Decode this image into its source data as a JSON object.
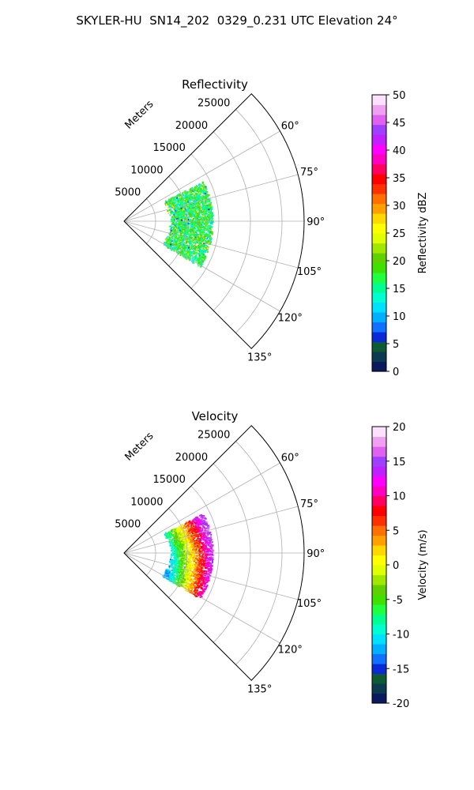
{
  "figure": {
    "title": "SKYLER-HU  SN14_202  0329_0.231 UTC Elevation 24°"
  },
  "chart_data": [
    {
      "type": "heatmap",
      "subtype": "polar-sector-ppi",
      "title": "Reflectivity",
      "range_axis_label": "Meters",
      "range_ticks": [
        5000,
        10000,
        15000,
        20000,
        25000
      ],
      "range_tick_labels": [
        "5000",
        "10000",
        "15000",
        "20000",
        "25000"
      ],
      "range_max": 28500,
      "azimuth_ticks": [
        60,
        75,
        90,
        105,
        120,
        135
      ],
      "azimuth_tick_labels": [
        "60°",
        "75°",
        "90°",
        "105°",
        "120°",
        "135°"
      ],
      "azimuth_range": [
        45,
        135
      ],
      "grid": true,
      "data_extent": {
        "range_start": 7000,
        "range_end": 14000,
        "azimuth_start": 63,
        "azimuth_end": 121
      },
      "typical_value_range": [
        10,
        25
      ],
      "colorbar": {
        "label": "Reflectivity dBZ",
        "ticks": [
          0,
          5,
          10,
          15,
          20,
          25,
          30,
          35,
          40,
          45,
          50
        ],
        "tick_labels": [
          "0",
          "5",
          "10",
          "15",
          "20",
          "25",
          "30",
          "35",
          "40",
          "45",
          "50"
        ],
        "vmin": 0,
        "vmax": 50,
        "colors": [
          "#0a1a5c",
          "#0c3a50",
          "#0d5a35",
          "#0a2ad8",
          "#1070ff",
          "#00b0ff",
          "#00e0ff",
          "#00ffd0",
          "#00ff90",
          "#20ff40",
          "#40e000",
          "#60d000",
          "#a0e800",
          "#e0ff00",
          "#ffff00",
          "#ffd800",
          "#ffa000",
          "#ff7000",
          "#ff3000",
          "#ff0000",
          "#ff0060",
          "#ff00c0",
          "#ff00ff",
          "#c020ff",
          "#a040ff",
          "#e060f0",
          "#f0a0f0",
          "#fce0fc"
        ]
      }
    },
    {
      "type": "heatmap",
      "subtype": "polar-sector-ppi",
      "title": "Velocity",
      "range_axis_label": "Meters",
      "range_ticks": [
        5000,
        10000,
        15000,
        20000,
        25000
      ],
      "range_tick_labels": [
        "5000",
        "10000",
        "15000",
        "20000",
        "25000"
      ],
      "range_max": 28500,
      "azimuth_ticks": [
        60,
        75,
        90,
        105,
        120,
        135
      ],
      "azimuth_tick_labels": [
        "60°",
        "75°",
        "90°",
        "105°",
        "120°",
        "135°"
      ],
      "azimuth_range": [
        45,
        135
      ],
      "grid": true,
      "data_extent": {
        "range_start": 7000,
        "range_end": 14000,
        "azimuth_start": 63,
        "azimuth_end": 121
      },
      "typical_value_range": [
        -12,
        15
      ],
      "colorbar": {
        "label": "Velocity (m/s)",
        "ticks": [
          -20,
          -15,
          -10,
          -5,
          0,
          5,
          10,
          15,
          20
        ],
        "tick_labels": [
          "-20",
          "-15",
          "-10",
          "-5",
          "0",
          "5",
          "10",
          "15",
          "20"
        ],
        "vmin": -20,
        "vmax": 20,
        "colors": [
          "#0a1a5c",
          "#0c3a50",
          "#0d5a35",
          "#0a2ad8",
          "#1070ff",
          "#00b0ff",
          "#00e0ff",
          "#00ffd0",
          "#00ff90",
          "#20ff40",
          "#40e000",
          "#60d000",
          "#a0e800",
          "#e0ff00",
          "#ffff00",
          "#ffd800",
          "#ffa000",
          "#ff7000",
          "#ff3000",
          "#ff0000",
          "#ff0060",
          "#ff00c0",
          "#ff00ff",
          "#c020ff",
          "#a040ff",
          "#e060f0",
          "#f0a0f0",
          "#fce0fc"
        ]
      }
    }
  ]
}
